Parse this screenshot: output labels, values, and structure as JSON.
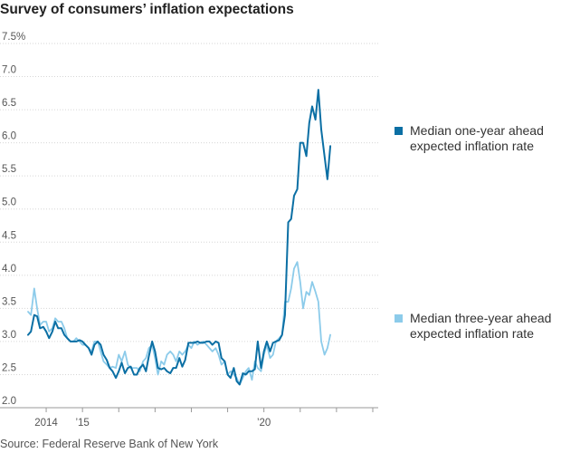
{
  "title": "Survey of consumers’ inflation expectations",
  "source": "Source: Federal Reserve Bank of New York",
  "colors": {
    "one_year": "#0b6fa4",
    "three_year": "#8ccbea",
    "grid": "#d6d6d6",
    "axis": "#999999"
  },
  "legend": {
    "one_year": [
      "Median one-year ahead",
      "expected inflation rate"
    ],
    "three_year": [
      "Median three-year ahead",
      "expected inflation rate"
    ]
  },
  "chart_data": {
    "type": "line",
    "title": "Survey of consumers’ inflation expectations",
    "xlabel": "",
    "ylabel": "",
    "x_range": [
      2013.5,
      2023.15
    ],
    "ylim": [
      2.0,
      7.5
    ],
    "y_ticks": [
      2.0,
      2.5,
      3.0,
      3.5,
      4.0,
      4.5,
      5.0,
      5.5,
      6.0,
      6.5,
      7.0,
      7.5
    ],
    "y_tick_labels": [
      "2.0",
      "2.5",
      "3.0",
      "3.5",
      "4.0",
      "4.5",
      "5.0",
      "5.5",
      "6.0",
      "6.5",
      "7.0",
      "7.5%"
    ],
    "x_ticks": [
      2014,
      2015,
      2020
    ],
    "x_tick_labels": [
      "2014",
      "’15",
      "’20"
    ],
    "grid": true,
    "series": [
      {
        "name": "Median one-year ahead expected inflation rate",
        "points": [
          [
            2013.5,
            3.1
          ],
          [
            2013.58,
            3.15
          ],
          [
            2013.67,
            3.4
          ],
          [
            2013.75,
            3.38
          ],
          [
            2013.83,
            3.2
          ],
          [
            2013.92,
            3.22
          ],
          [
            2014.0,
            3.15
          ],
          [
            2014.08,
            3.05
          ],
          [
            2014.17,
            3.15
          ],
          [
            2014.25,
            3.3
          ],
          [
            2014.33,
            3.2
          ],
          [
            2014.42,
            3.2
          ],
          [
            2014.5,
            3.1
          ],
          [
            2014.58,
            3.05
          ],
          [
            2014.67,
            3.0
          ],
          [
            2014.75,
            3.0
          ],
          [
            2014.83,
            3.0
          ],
          [
            2014.92,
            3.02
          ],
          [
            2015.0,
            3.0
          ],
          [
            2015.08,
            2.95
          ],
          [
            2015.17,
            2.9
          ],
          [
            2015.25,
            2.8
          ],
          [
            2015.33,
            2.95
          ],
          [
            2015.42,
            3.0
          ],
          [
            2015.5,
            2.95
          ],
          [
            2015.58,
            2.8
          ],
          [
            2015.67,
            2.72
          ],
          [
            2015.75,
            2.6
          ],
          [
            2015.83,
            2.55
          ],
          [
            2015.92,
            2.45
          ],
          [
            2016.0,
            2.55
          ],
          [
            2016.08,
            2.68
          ],
          [
            2016.17,
            2.52
          ],
          [
            2016.25,
            2.6
          ],
          [
            2016.33,
            2.62
          ],
          [
            2016.42,
            2.5
          ],
          [
            2016.5,
            2.5
          ],
          [
            2016.58,
            2.6
          ],
          [
            2016.67,
            2.65
          ],
          [
            2016.75,
            2.55
          ],
          [
            2016.83,
            2.78
          ],
          [
            2016.92,
            3.0
          ],
          [
            2017.0,
            2.85
          ],
          [
            2017.08,
            2.6
          ],
          [
            2017.17,
            2.58
          ],
          [
            2017.25,
            2.6
          ],
          [
            2017.33,
            2.55
          ],
          [
            2017.42,
            2.52
          ],
          [
            2017.5,
            2.6
          ],
          [
            2017.58,
            2.6
          ],
          [
            2017.67,
            2.75
          ],
          [
            2017.75,
            2.62
          ],
          [
            2017.83,
            2.72
          ],
          [
            2017.92,
            2.98
          ],
          [
            2018.0,
            2.98
          ],
          [
            2018.08,
            2.98
          ],
          [
            2018.17,
            3.0
          ],
          [
            2018.25,
            2.98
          ],
          [
            2018.33,
            2.98
          ],
          [
            2018.42,
            3.0
          ],
          [
            2018.5,
            3.0
          ],
          [
            2018.58,
            2.95
          ],
          [
            2018.67,
            3.0
          ],
          [
            2018.75,
            2.98
          ],
          [
            2018.83,
            2.75
          ],
          [
            2018.92,
            2.7
          ],
          [
            2019.0,
            2.5
          ],
          [
            2019.08,
            2.45
          ],
          [
            2019.17,
            2.6
          ],
          [
            2019.25,
            2.4
          ],
          [
            2019.33,
            2.35
          ],
          [
            2019.42,
            2.52
          ],
          [
            2019.5,
            2.5
          ],
          [
            2019.58,
            2.55
          ],
          [
            2019.67,
            2.55
          ],
          [
            2019.75,
            2.58
          ],
          [
            2019.83,
            3.0
          ],
          [
            2019.92,
            2.6
          ],
          [
            2020.0,
            2.85
          ],
          [
            2020.08,
            3.0
          ],
          [
            2020.17,
            2.85
          ],
          [
            2020.25,
            2.98
          ],
          [
            2020.33,
            3.0
          ],
          [
            2020.42,
            3.02
          ],
          [
            2020.5,
            3.1
          ],
          [
            2020.58,
            3.4
          ],
          [
            2020.67,
            4.8
          ],
          [
            2020.75,
            4.85
          ],
          [
            2020.83,
            5.2
          ],
          [
            2020.92,
            5.3
          ],
          [
            2021.0,
            6.0
          ],
          [
            2021.08,
            6.0
          ],
          [
            2021.17,
            5.8
          ],
          [
            2021.25,
            6.3
          ],
          [
            2021.33,
            6.55
          ],
          [
            2021.42,
            6.35
          ],
          [
            2021.5,
            6.8
          ],
          [
            2021.58,
            6.2
          ],
          [
            2021.67,
            5.8
          ],
          [
            2021.75,
            5.45
          ],
          [
            2021.83,
            5.95
          ]
        ]
      },
      {
        "name": "Median three-year ahead expected inflation rate",
        "points": [
          [
            2013.5,
            3.45
          ],
          [
            2013.58,
            3.4
          ],
          [
            2013.67,
            3.8
          ],
          [
            2013.75,
            3.5
          ],
          [
            2013.83,
            3.25
          ],
          [
            2013.92,
            3.3
          ],
          [
            2014.0,
            3.3
          ],
          [
            2014.08,
            3.15
          ],
          [
            2014.17,
            3.2
          ],
          [
            2014.25,
            3.35
          ],
          [
            2014.33,
            3.3
          ],
          [
            2014.42,
            3.3
          ],
          [
            2014.5,
            3.2
          ],
          [
            2014.58,
            3.05
          ],
          [
            2014.67,
            3.0
          ],
          [
            2014.75,
            3.0
          ],
          [
            2014.83,
            3.05
          ],
          [
            2014.92,
            3.0
          ],
          [
            2015.0,
            2.95
          ],
          [
            2015.08,
            2.95
          ],
          [
            2015.17,
            2.9
          ],
          [
            2015.25,
            2.85
          ],
          [
            2015.33,
            3.0
          ],
          [
            2015.42,
            3.0
          ],
          [
            2015.5,
            2.85
          ],
          [
            2015.58,
            2.7
          ],
          [
            2015.67,
            2.65
          ],
          [
            2015.75,
            2.6
          ],
          [
            2015.83,
            2.62
          ],
          [
            2015.92,
            2.6
          ],
          [
            2016.0,
            2.8
          ],
          [
            2016.08,
            2.7
          ],
          [
            2016.17,
            2.85
          ],
          [
            2016.25,
            2.65
          ],
          [
            2016.33,
            2.6
          ],
          [
            2016.42,
            2.6
          ],
          [
            2016.5,
            2.6
          ],
          [
            2016.58,
            2.55
          ],
          [
            2016.67,
            2.7
          ],
          [
            2016.75,
            2.75
          ],
          [
            2016.83,
            2.9
          ],
          [
            2016.92,
            2.95
          ],
          [
            2017.0,
            2.75
          ],
          [
            2017.08,
            2.5
          ],
          [
            2017.17,
            2.7
          ],
          [
            2017.25,
            2.65
          ],
          [
            2017.33,
            2.8
          ],
          [
            2017.42,
            2.85
          ],
          [
            2017.5,
            2.8
          ],
          [
            2017.58,
            2.7
          ],
          [
            2017.67,
            2.85
          ],
          [
            2017.75,
            2.8
          ],
          [
            2017.83,
            2.85
          ],
          [
            2017.92,
            2.95
          ],
          [
            2018.0,
            2.9
          ],
          [
            2018.08,
            3.0
          ],
          [
            2018.17,
            2.95
          ],
          [
            2018.25,
            2.98
          ],
          [
            2018.33,
            3.0
          ],
          [
            2018.42,
            2.95
          ],
          [
            2018.5,
            2.9
          ],
          [
            2018.58,
            2.85
          ],
          [
            2018.67,
            2.9
          ],
          [
            2018.75,
            2.8
          ],
          [
            2018.83,
            2.65
          ],
          [
            2018.92,
            2.7
          ],
          [
            2019.0,
            2.5
          ],
          [
            2019.08,
            2.55
          ],
          [
            2019.17,
            2.5
          ],
          [
            2019.25,
            2.45
          ],
          [
            2019.33,
            2.35
          ],
          [
            2019.42,
            2.45
          ],
          [
            2019.5,
            2.55
          ],
          [
            2019.58,
            2.6
          ],
          [
            2019.67,
            2.42
          ],
          [
            2019.75,
            2.7
          ],
          [
            2019.83,
            2.6
          ],
          [
            2019.92,
            2.55
          ],
          [
            2020.0,
            2.8
          ],
          [
            2020.08,
            2.95
          ],
          [
            2020.17,
            2.75
          ],
          [
            2020.25,
            2.8
          ],
          [
            2020.33,
            3.0
          ],
          [
            2020.42,
            3.05
          ],
          [
            2020.5,
            3.1
          ],
          [
            2020.58,
            3.6
          ],
          [
            2020.67,
            3.6
          ],
          [
            2020.75,
            3.8
          ],
          [
            2020.83,
            4.1
          ],
          [
            2020.92,
            4.2
          ],
          [
            2021.0,
            3.9
          ],
          [
            2021.08,
            3.5
          ],
          [
            2021.17,
            3.75
          ],
          [
            2021.25,
            3.7
          ],
          [
            2021.33,
            3.9
          ],
          [
            2021.42,
            3.75
          ],
          [
            2021.5,
            3.6
          ],
          [
            2021.58,
            3.0
          ],
          [
            2021.67,
            2.8
          ],
          [
            2021.75,
            2.9
          ],
          [
            2021.83,
            3.1
          ]
        ]
      }
    ]
  }
}
